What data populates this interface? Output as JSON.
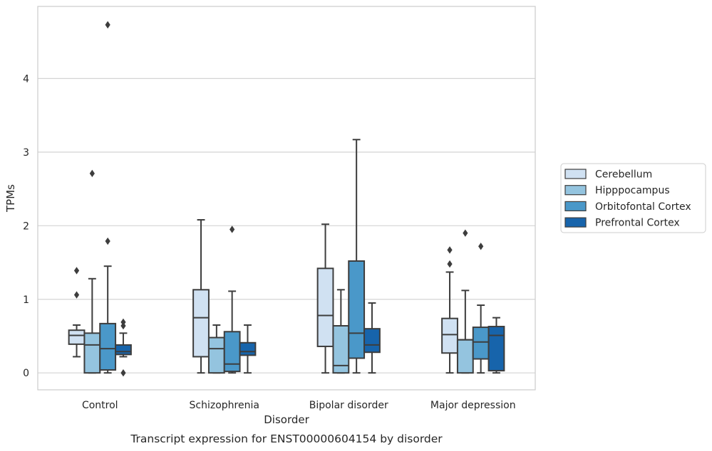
{
  "chart_data": {
    "type": "box",
    "caption": "Transcript expression for ENST00000604154 by disorder",
    "xlabel": "Disorder",
    "ylabel": "TPMs",
    "ylim": [
      -0.23,
      4.98
    ],
    "yticks": [
      0,
      1,
      2,
      3,
      4
    ],
    "grid": true,
    "legend_position": "right",
    "categories": [
      "Control",
      "Schizophrenia",
      "Bipolar disorder",
      "Major depression"
    ],
    "series": [
      {
        "name": "Cerebellum",
        "color": "#d0e1f2",
        "boxes": [
          {
            "whisker_low": 0.22,
            "q1": 0.39,
            "median": 0.51,
            "q3": 0.58,
            "whisker_high": 0.65,
            "outliers": [
              1.39,
              1.06
            ]
          },
          {
            "whisker_low": 0.0,
            "q1": 0.22,
            "median": 0.75,
            "q3": 1.13,
            "whisker_high": 2.08,
            "outliers": []
          },
          {
            "whisker_low": 0.0,
            "q1": 0.36,
            "median": 0.78,
            "q3": 1.42,
            "whisker_high": 2.02,
            "outliers": []
          },
          {
            "whisker_low": 0.0,
            "q1": 0.27,
            "median": 0.52,
            "q3": 0.74,
            "whisker_high": 1.37,
            "outliers": [
              1.67,
              1.48
            ]
          }
        ]
      },
      {
        "name": "Hipppocampus",
        "color": "#94c4df",
        "boxes": [
          {
            "whisker_low": 0.0,
            "q1": 0.0,
            "median": 0.38,
            "q3": 0.54,
            "whisker_high": 1.28,
            "outliers": [
              2.71
            ]
          },
          {
            "whisker_low": 0.0,
            "q1": 0.0,
            "median": 0.33,
            "q3": 0.48,
            "whisker_high": 0.65,
            "outliers": []
          },
          {
            "whisker_low": 0.0,
            "q1": 0.0,
            "median": 0.1,
            "q3": 0.64,
            "whisker_high": 1.13,
            "outliers": []
          },
          {
            "whisker_low": 0.0,
            "q1": 0.0,
            "median": 0.45,
            "q3": 0.45,
            "whisker_high": 1.12,
            "outliers": [
              1.9
            ]
          }
        ]
      },
      {
        "name": "Orbitofontal Cortex",
        "color": "#4a98c9",
        "boxes": [
          {
            "whisker_low": 0.0,
            "q1": 0.04,
            "median": 0.33,
            "q3": 0.67,
            "whisker_high": 1.45,
            "outliers": [
              1.79,
              4.73
            ]
          },
          {
            "whisker_low": 0.0,
            "q1": 0.02,
            "median": 0.12,
            "q3": 0.56,
            "whisker_high": 1.11,
            "outliers": [
              1.95
            ]
          },
          {
            "whisker_low": 0.0,
            "q1": 0.2,
            "median": 0.54,
            "q3": 1.52,
            "whisker_high": 3.17,
            "outliers": []
          },
          {
            "whisker_low": 0.0,
            "q1": 0.19,
            "median": 0.42,
            "q3": 0.62,
            "whisker_high": 0.92,
            "outliers": [
              1.72
            ]
          }
        ]
      },
      {
        "name": "Prefrontal Cortex",
        "color": "#1764ab",
        "boxes": [
          {
            "whisker_low": 0.22,
            "q1": 0.25,
            "median": 0.29,
            "q3": 0.38,
            "whisker_high": 0.54,
            "outliers": [
              0.0,
              0.64,
              0.69
            ]
          },
          {
            "whisker_low": 0.0,
            "q1": 0.24,
            "median": 0.29,
            "q3": 0.41,
            "whisker_high": 0.65,
            "outliers": []
          },
          {
            "whisker_low": 0.0,
            "q1": 0.28,
            "median": 0.38,
            "q3": 0.6,
            "whisker_high": 0.95,
            "outliers": []
          },
          {
            "whisker_low": 0.0,
            "q1": 0.03,
            "median": 0.51,
            "q3": 0.63,
            "whisker_high": 0.75,
            "outliers": []
          }
        ]
      }
    ]
  }
}
